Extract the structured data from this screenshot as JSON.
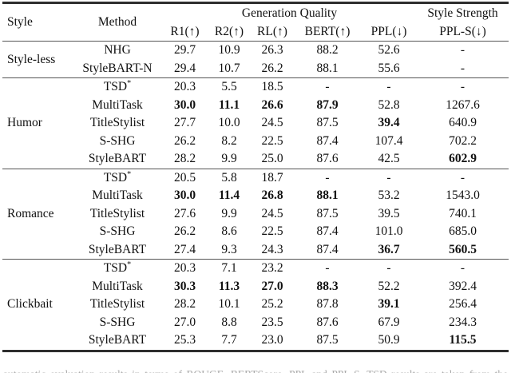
{
  "table": {
    "header": {
      "style_col": "Style",
      "method_col": "Method",
      "group_generation": "Generation Quality",
      "group_style_strength": "Style Strength",
      "metrics": [
        "R1(↑)",
        "R2(↑)",
        "RL(↑)",
        "BERT(↑)",
        "PPL(↓)",
        "PPL-S(↓)"
      ]
    },
    "groups": [
      {
        "style": "Style-less",
        "rows": [
          {
            "method": "NHG",
            "values": [
              "29.7",
              "10.9",
              "26.3",
              "88.2",
              "52.6",
              "-"
            ],
            "bold": [
              false,
              false,
              false,
              false,
              false,
              false
            ]
          },
          {
            "method": "StyleBART-N",
            "values": [
              "29.4",
              "10.7",
              "26.2",
              "88.1",
              "55.6",
              "-"
            ],
            "bold": [
              false,
              false,
              false,
              false,
              false,
              false
            ]
          }
        ]
      },
      {
        "style": "Humor",
        "rows": [
          {
            "method": "TSD",
            "method_sup": "*",
            "values": [
              "20.3",
              "5.5",
              "18.5",
              "-",
              "-",
              "-"
            ],
            "bold": [
              false,
              false,
              false,
              false,
              false,
              false
            ]
          },
          {
            "method": "MultiTask",
            "values": [
              "30.0",
              "11.1",
              "26.6",
              "87.9",
              "52.8",
              "1267.6"
            ],
            "bold": [
              true,
              true,
              true,
              true,
              false,
              false
            ]
          },
          {
            "method": "TitleStylist",
            "values": [
              "27.7",
              "10.0",
              "24.5",
              "87.5",
              "39.4",
              "640.9"
            ],
            "bold": [
              false,
              false,
              false,
              false,
              true,
              false
            ]
          },
          {
            "method": "S-SHG",
            "values": [
              "26.2",
              "8.2",
              "22.5",
              "87.4",
              "107.4",
              "702.2"
            ],
            "bold": [
              false,
              false,
              false,
              false,
              false,
              false
            ]
          },
          {
            "method": "StyleBART",
            "values": [
              "28.2",
              "9.9",
              "25.0",
              "87.6",
              "42.5",
              "602.9"
            ],
            "bold": [
              false,
              false,
              false,
              false,
              false,
              true
            ]
          }
        ]
      },
      {
        "style": "Romance",
        "rows": [
          {
            "method": "TSD",
            "method_sup": "*",
            "values": [
              "20.5",
              "5.8",
              "18.7",
              "-",
              "-",
              "-"
            ],
            "bold": [
              false,
              false,
              false,
              false,
              false,
              false
            ]
          },
          {
            "method": "MultiTask",
            "values": [
              "30.0",
              "11.4",
              "26.8",
              "88.1",
              "53.2",
              "1543.0"
            ],
            "bold": [
              true,
              true,
              true,
              true,
              false,
              false
            ]
          },
          {
            "method": "TitleStylist",
            "values": [
              "27.6",
              "9.9",
              "24.5",
              "87.5",
              "39.5",
              "740.1"
            ],
            "bold": [
              false,
              false,
              false,
              false,
              false,
              false
            ]
          },
          {
            "method": "S-SHG",
            "values": [
              "26.2",
              "8.6",
              "22.5",
              "87.4",
              "101.0",
              "685.0"
            ],
            "bold": [
              false,
              false,
              false,
              false,
              false,
              false
            ]
          },
          {
            "method": "StyleBART",
            "values": [
              "27.4",
              "9.3",
              "24.3",
              "87.4",
              "36.7",
              "560.5"
            ],
            "bold": [
              false,
              false,
              false,
              false,
              true,
              true
            ]
          }
        ]
      },
      {
        "style": "Clickbait",
        "rows": [
          {
            "method": "TSD",
            "method_sup": "*",
            "values": [
              "20.3",
              "7.1",
              "23.2",
              "-",
              "-",
              "-"
            ],
            "bold": [
              false,
              false,
              false,
              false,
              false,
              false
            ]
          },
          {
            "method": "MultiTask",
            "values": [
              "30.3",
              "11.3",
              "27.0",
              "88.3",
              "52.2",
              "392.4"
            ],
            "bold": [
              true,
              true,
              true,
              true,
              false,
              false
            ]
          },
          {
            "method": "TitleStylist",
            "values": [
              "28.2",
              "10.1",
              "25.2",
              "87.8",
              "39.1",
              "256.4"
            ],
            "bold": [
              false,
              false,
              false,
              false,
              true,
              false
            ]
          },
          {
            "method": "S-SHG",
            "values": [
              "27.0",
              "8.8",
              "23.5",
              "87.6",
              "67.9",
              "234.3"
            ],
            "bold": [
              false,
              false,
              false,
              false,
              false,
              false
            ]
          },
          {
            "method": "StyleBART",
            "values": [
              "25.3",
              "7.7",
              "23.0",
              "87.5",
              "50.9",
              "115.5"
            ],
            "bold": [
              false,
              false,
              false,
              false,
              false,
              true
            ]
          }
        ]
      }
    ]
  },
  "caption_fragment": "automatic evaluation results in terms of ROUGE, BERTScore, PPL and PPL-S. TSD results are taken from the original paper and italicized."
}
